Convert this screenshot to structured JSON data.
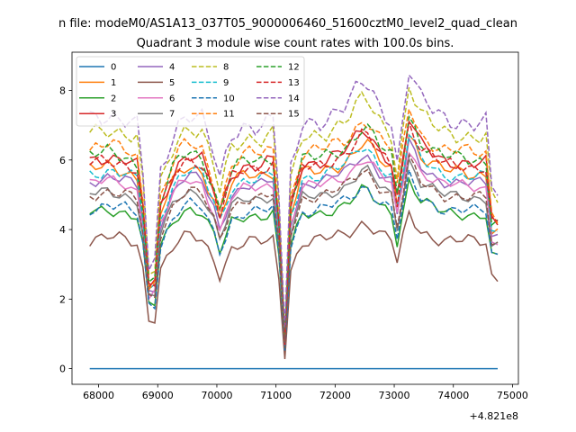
{
  "chart_data": {
    "type": "line",
    "suptitle": "n file: modeM0/AS1A13_037T05_9000006460_51600cztM0_level2_quad_clean",
    "title": "Quadrant 3 module wise count rates with 100.0s bins.",
    "xlabel": "",
    "ylabel": "",
    "offset_text": "+4.821e8",
    "xlim": [
      67550,
      75100
    ],
    "ylim": [
      -0.45,
      9.1
    ],
    "xticks": [
      68000,
      69000,
      70000,
      71000,
      72000,
      73000,
      74000,
      75000
    ],
    "xtick_labels": [
      "68000",
      "69000",
      "70000",
      "71000",
      "72000",
      "73000",
      "74000",
      "75000"
    ],
    "yticks": [
      0,
      2,
      4,
      6,
      8
    ],
    "ytick_labels": [
      "0",
      "2",
      "4",
      "6",
      "8"
    ],
    "grid": false,
    "legend_position": "upper-left",
    "legend_columns": 4,
    "series": [
      {
        "name": "0",
        "color": "#1f77b4",
        "dash": "solid",
        "anchors": [
          [
            67850,
            0
          ],
          [
            74750,
            0
          ]
        ],
        "amp": 0
      },
      {
        "name": "1",
        "color": "#ff7f0e",
        "dash": "solid",
        "base": 5.7,
        "amp": 0.25
      },
      {
        "name": "2",
        "color": "#2ca02c",
        "dash": "solid",
        "base": 4.5,
        "amp": 0.2
      },
      {
        "name": "3",
        "color": "#d62728",
        "dash": "solid",
        "base": 6.0,
        "amp": 0.25
      },
      {
        "name": "4",
        "color": "#9467bd",
        "dash": "solid",
        "base": 5.4,
        "amp": 0.2
      },
      {
        "name": "5",
        "color": "#8c564b",
        "dash": "solid",
        "base": 3.7,
        "amp": 0.22
      },
      {
        "name": "6",
        "color": "#e377c2",
        "dash": "solid",
        "base": 5.3,
        "amp": 0.2
      },
      {
        "name": "7",
        "color": "#7f7f7f",
        "dash": "solid",
        "base": 5.0,
        "amp": 0.2
      },
      {
        "name": "8",
        "color": "#bcbd22",
        "dash": "dashed",
        "base": 6.8,
        "amp": 0.3
      },
      {
        "name": "9",
        "color": "#17becf",
        "dash": "dashed",
        "base": 5.6,
        "amp": 0.22
      },
      {
        "name": "10",
        "color": "#1f77b4",
        "dash": "dashed",
        "base": 4.6,
        "amp": 0.2
      },
      {
        "name": "11",
        "color": "#ff7f0e",
        "dash": "dashed",
        "base": 6.3,
        "amp": 0.25
      },
      {
        "name": "12",
        "color": "#2ca02c",
        "dash": "dashed",
        "base": 6.1,
        "amp": 0.25
      },
      {
        "name": "13",
        "color": "#d62728",
        "dash": "dashed",
        "base": 5.9,
        "amp": 0.22
      },
      {
        "name": "14",
        "color": "#9467bd",
        "dash": "dashed",
        "base": 7.2,
        "amp": 0.35
      },
      {
        "name": "15",
        "color": "#8c564b",
        "dash": "dashed",
        "base": 5.0,
        "amp": 0.2
      }
    ],
    "profile": [
      [
        67850,
        1.0
      ],
      [
        68150,
        1.02
      ],
      [
        68450,
        1.0
      ],
      [
        68700,
        0.96
      ],
      [
        68850,
        0.4
      ],
      [
        68920,
        0.3
      ],
      [
        69050,
        0.78
      ],
      [
        69300,
        0.97
      ],
      [
        69500,
        1.03
      ],
      [
        69750,
        1.0
      ],
      [
        69950,
        0.85
      ],
      [
        70050,
        0.74
      ],
      [
        70250,
        0.93
      ],
      [
        70500,
        0.98
      ],
      [
        70750,
        0.98
      ],
      [
        70950,
        1.0
      ],
      [
        71050,
        0.7
      ],
      [
        71150,
        0.13
      ],
      [
        71250,
        0.78
      ],
      [
        71450,
        0.98
      ],
      [
        71800,
        1.0
      ],
      [
        72200,
        1.05
      ],
      [
        72500,
        1.15
      ],
      [
        72750,
        1.05
      ],
      [
        72950,
        1.0
      ],
      [
        73050,
        0.82
      ],
      [
        73250,
        1.2
      ],
      [
        73450,
        1.07
      ],
      [
        73800,
        1.0
      ],
      [
        74200,
        0.99
      ],
      [
        74600,
        0.98
      ],
      [
        74700,
        0.45
      ],
      [
        74800,
        0.95
      ]
    ]
  }
}
